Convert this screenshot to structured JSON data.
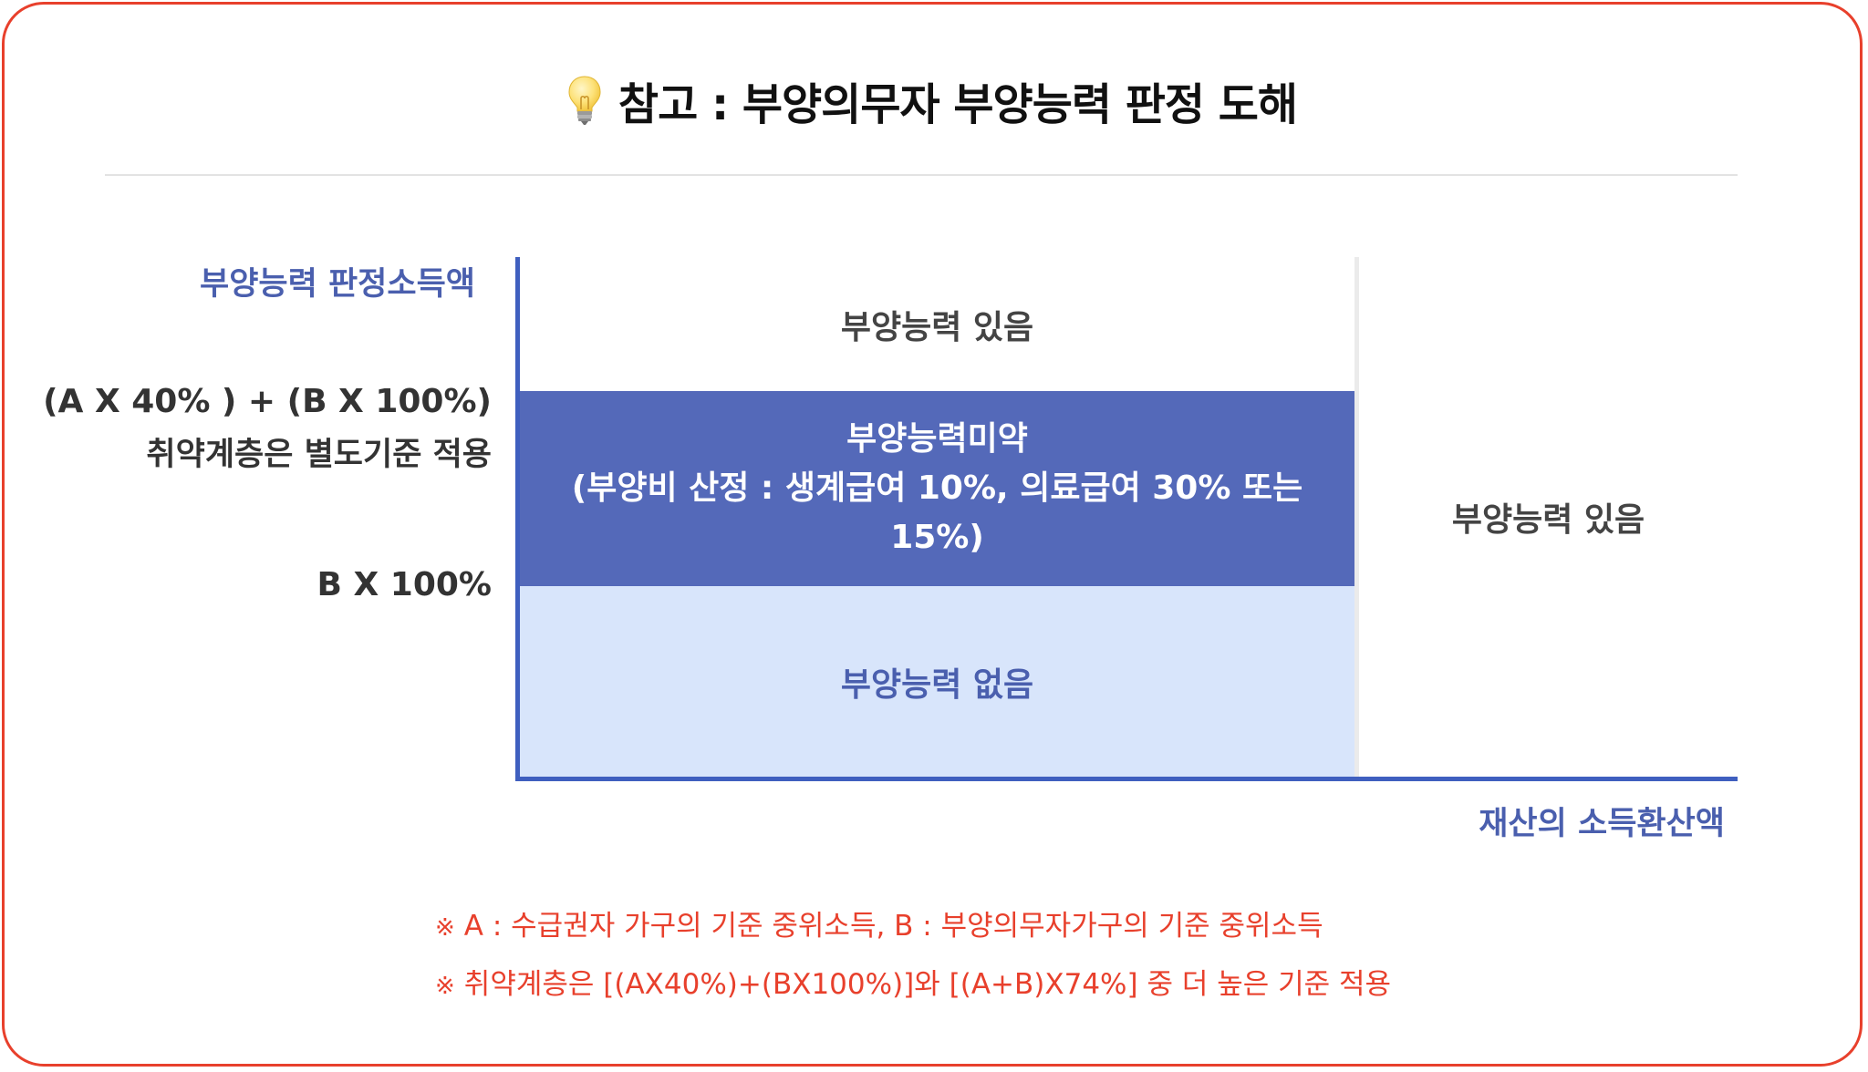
{
  "title": {
    "icon": "lightbulb-icon",
    "text": "참고 : 부양의무자 부양능력 판정 도해"
  },
  "diagram": {
    "y_axis_title": "부양능력 판정소득액",
    "x_axis_title": "재산의 소득환산액",
    "y_labels": {
      "upper_formula": "(A X 40% ) + (B X 100%)",
      "upper_note": "취약계층은 별도기준 적용",
      "lower": "B X 100%"
    },
    "zones": {
      "top": "부양능력 있음",
      "middle_line1": "부양능력미약",
      "middle_line2": "(부양비 산정 : 생계급여 10%, 의료급여 30% 또는 15%)",
      "bottom": "부양능력 없음",
      "right": "부양능력 있음"
    },
    "colors": {
      "axis": "#3f5fbf",
      "middle_zone": "#5469b9",
      "bottom_zone": "#d8e5fb",
      "accent_text": "#4a5fae",
      "border": "#e8402c"
    }
  },
  "notes": [
    {
      "mark": "※",
      "text": "A : 수급권자 가구의 기준 중위소득, B : 부양의무자가구의 기준 중위소득"
    },
    {
      "mark": "※",
      "text": "취약계층은 [(AX40%)+(BX100%)]와 [(A+B)X74%] 중 더 높은 기준 적용"
    }
  ]
}
